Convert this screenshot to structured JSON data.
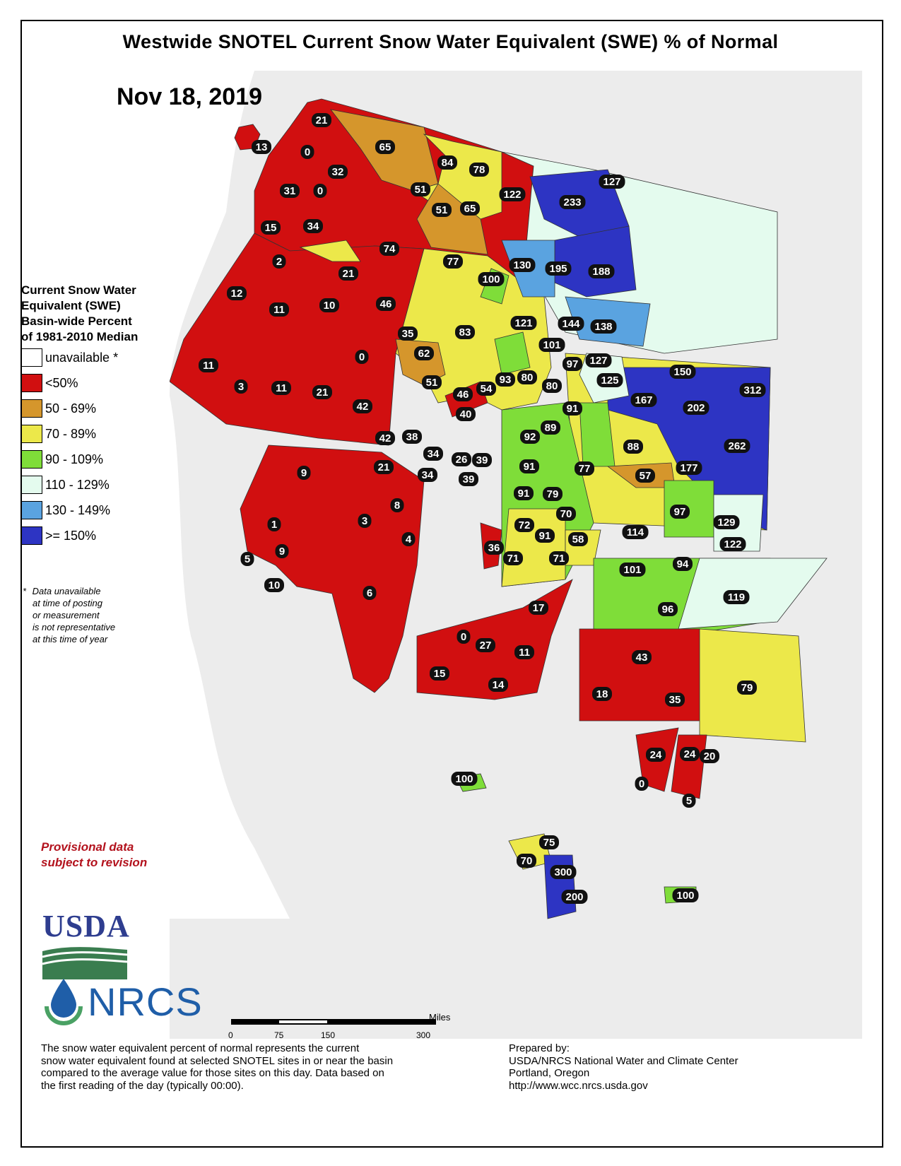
{
  "title": "Westwide SNOTEL Current Snow Water Equivalent (SWE) % of Normal",
  "date": "Nov 18, 2019",
  "legend": {
    "title_lines": [
      "Current Snow Water",
      "Equivalent (SWE)",
      "Basin-wide Percent",
      "of 1981-2010 Median"
    ],
    "items": [
      {
        "label": "unavailable *",
        "color": "#ffffff"
      },
      {
        "label": "<50%",
        "color": "#d10f10"
      },
      {
        "label": "50 - 69%",
        "color": "#d5962c"
      },
      {
        "label": "70 - 89%",
        "color": "#ece84a"
      },
      {
        "label": "90 - 109%",
        "color": "#7fdd39"
      },
      {
        "label": "110 - 129%",
        "color": "#e4fbee"
      },
      {
        "label": "130 - 149%",
        "color": "#5aa3e0"
      },
      {
        "label": ">= 150%",
        "color": "#2d34c3"
      }
    ]
  },
  "footnote": {
    "asterisk": "*",
    "lines": [
      "Data unavailable",
      "at time of posting",
      "or measurement",
      "is not representative",
      "at this time of year"
    ]
  },
  "provisional": [
    "Provisional data",
    "subject to revision"
  ],
  "logos": {
    "usda": "USDA",
    "nrcs": "NRCS"
  },
  "scale": {
    "unit": "Miles",
    "ticks": [
      "0",
      "75",
      "150",
      "300"
    ]
  },
  "description": [
    "The snow water equivalent percent of normal represents the current",
    "snow water equivalent found at selected SNOTEL sites in or near the basin",
    "compared to the average value for those sites on this day. Data based on",
    "the first reading of the day (typically 00:00)."
  ],
  "prepared_by": [
    "Prepared by:",
    "USDA/NRCS National Water and Climate Center",
    "Portland, Oregon",
    "http://www.wcc.nrcs.usda.gov"
  ],
  "basin_values": [
    "21",
    "13",
    "0",
    "32",
    "65",
    "84",
    "78",
    "31",
    "0",
    "51",
    "122",
    "233",
    "127",
    "15",
    "34",
    "51",
    "65",
    "74",
    "77",
    "130",
    "195",
    "188",
    "2",
    "21",
    "100",
    "12",
    "11",
    "10",
    "46",
    "121",
    "144",
    "138",
    "35",
    "83",
    "101",
    "11",
    "62",
    "0",
    "97",
    "127",
    "150",
    "3",
    "11",
    "21",
    "51",
    "46",
    "54",
    "93",
    "80",
    "80",
    "125",
    "312",
    "167",
    "202",
    "42",
    "40",
    "91",
    "89",
    "262",
    "42",
    "38",
    "92",
    "88",
    "34",
    "26",
    "39",
    "9",
    "21",
    "34",
    "39",
    "91",
    "77",
    "57",
    "177",
    "8",
    "91",
    "79",
    "1",
    "3",
    "70",
    "97",
    "72",
    "4",
    "91",
    "58",
    "114",
    "129",
    "5",
    "9",
    "36",
    "71",
    "71",
    "122",
    "101",
    "94",
    "10",
    "6",
    "96",
    "119",
    "17",
    "0",
    "27",
    "11",
    "43",
    "15",
    "14",
    "79",
    "18",
    "35",
    "24",
    "24",
    "20",
    "0",
    "5",
    "100",
    "75",
    "70",
    "300",
    "200",
    "100"
  ]
}
